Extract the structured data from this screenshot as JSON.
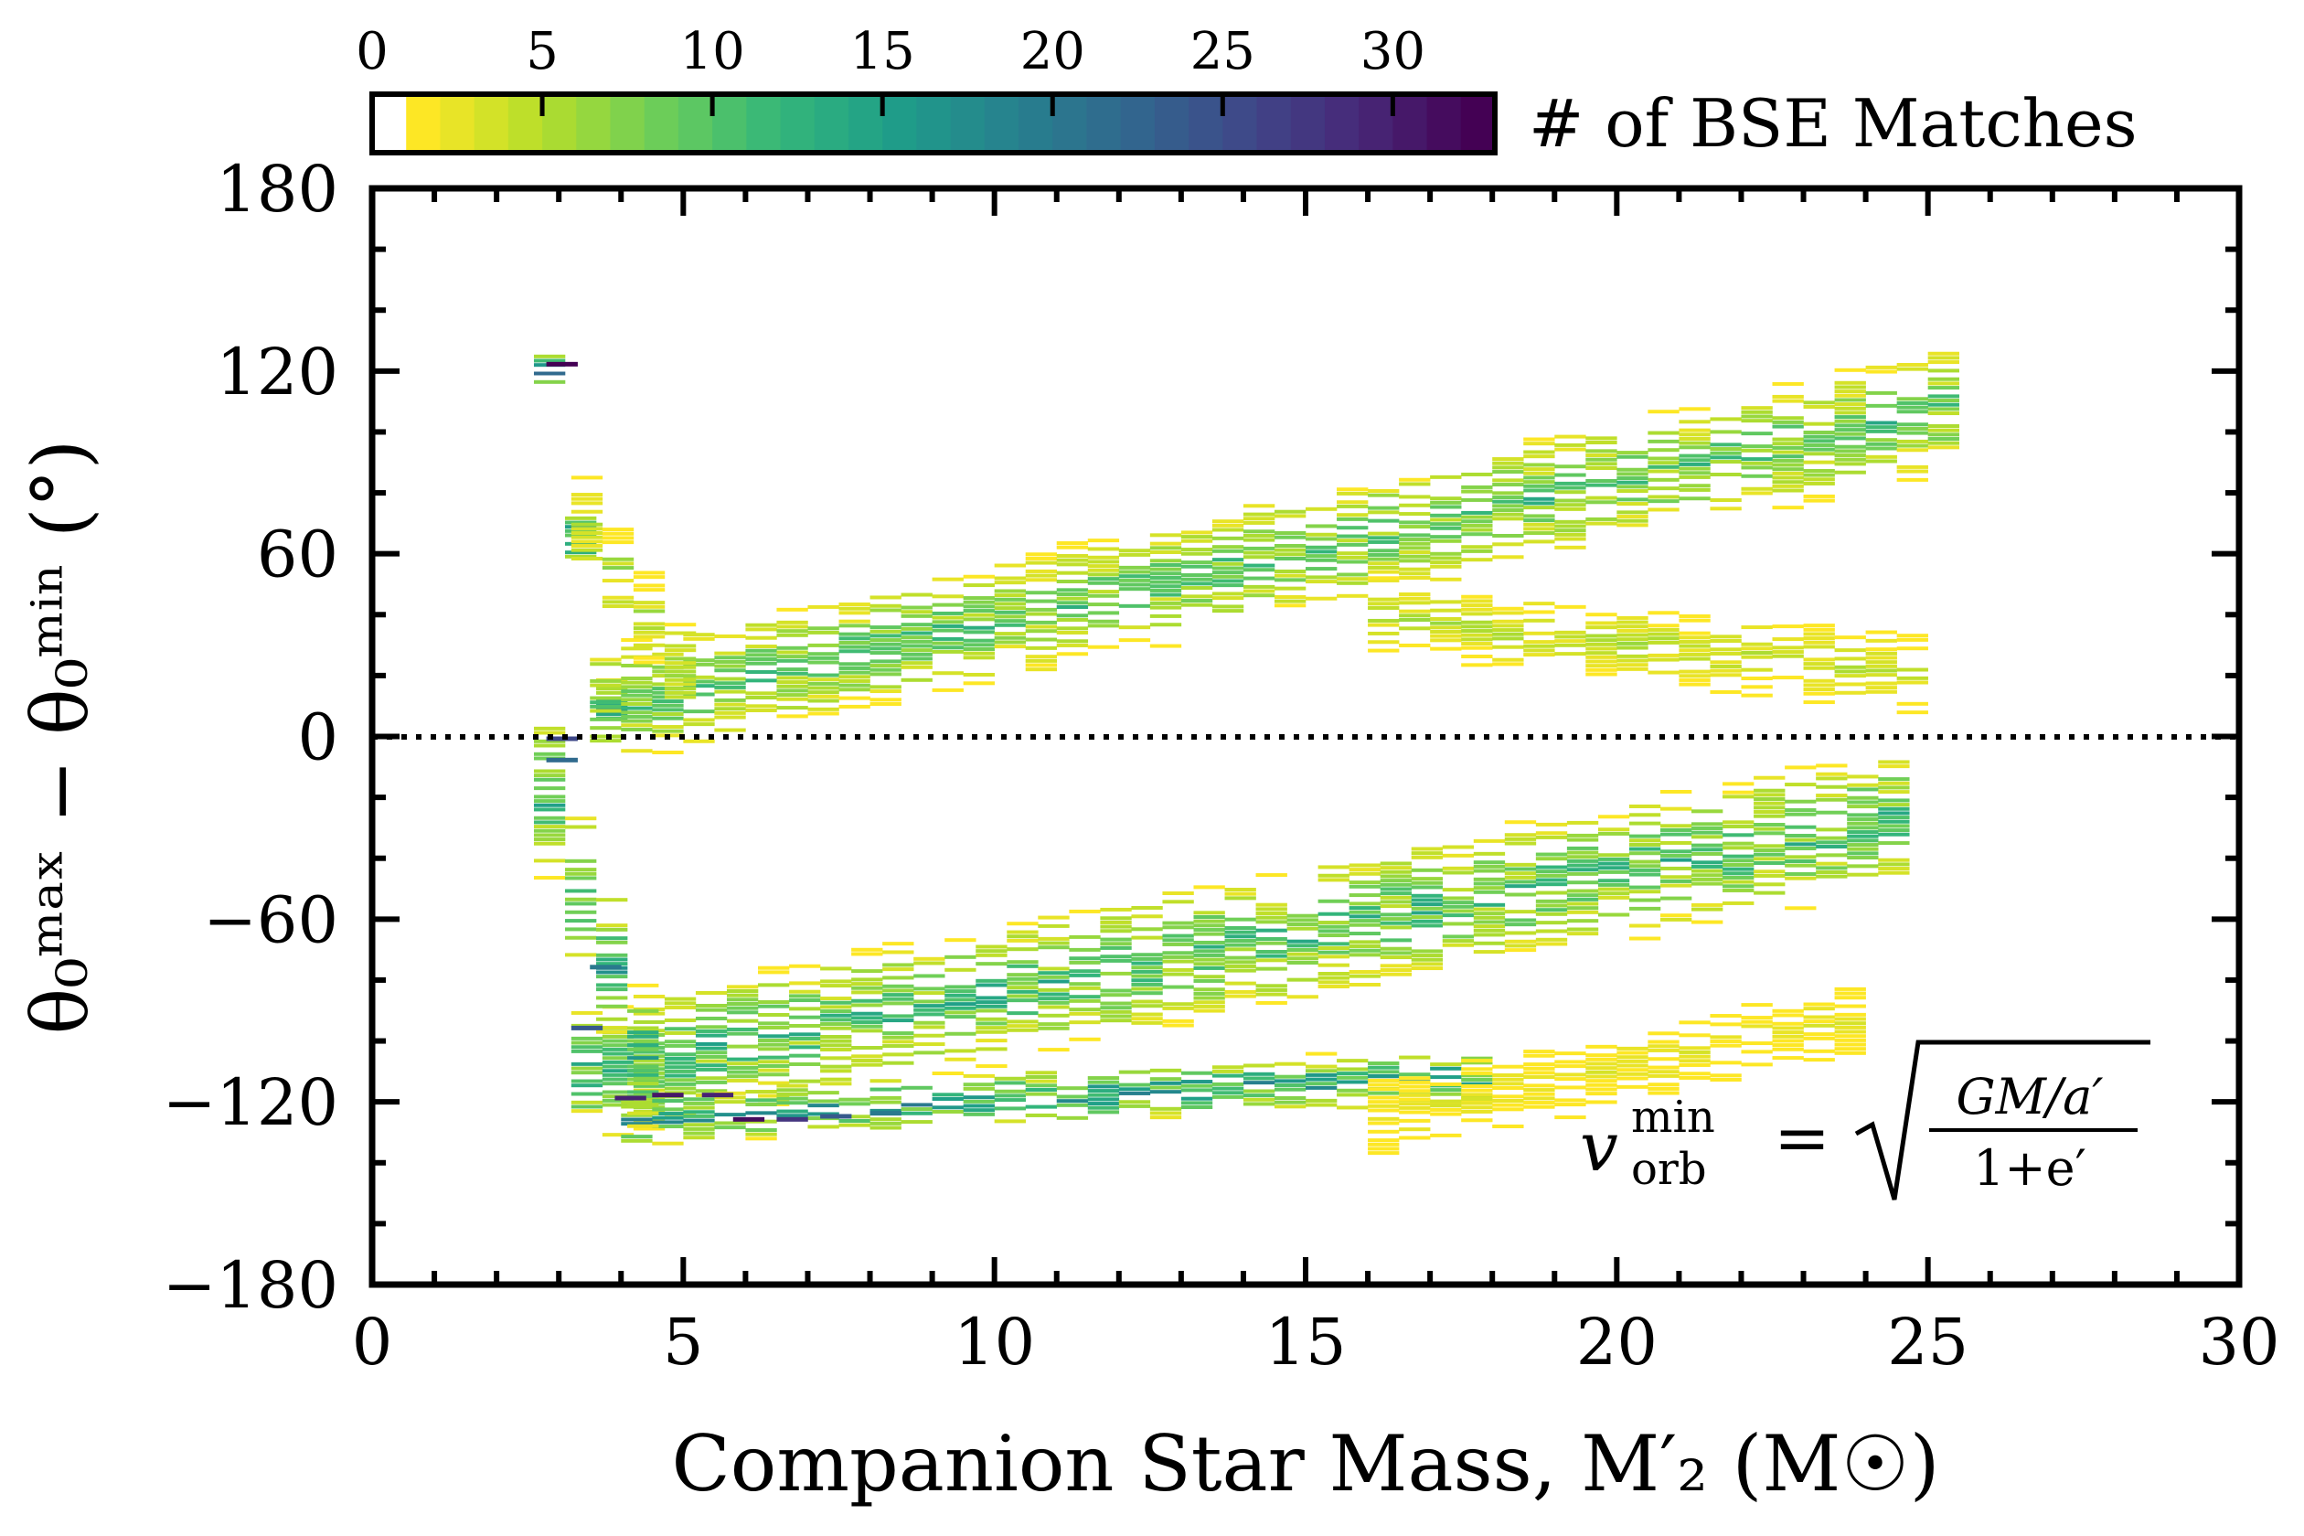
{
  "chart_data": {
    "type": "heatmap",
    "xlabel": "Companion Star Mass,  M′₂ (M☉)",
    "ylabel": "θ₀ᵐᵃˣ − θ₀ᵐⁱⁿ (°)",
    "xlim": [
      0,
      30
    ],
    "ylim": [
      -180,
      180
    ],
    "xticks": [
      0,
      5,
      10,
      15,
      20,
      25,
      30
    ],
    "xtick_labels": [
      "0",
      "5",
      "10",
      "15",
      "20",
      "25",
      "30"
    ],
    "yticks": [
      -180,
      -120,
      -60,
      0,
      60,
      120,
      180
    ],
    "ytick_labels": [
      "−180",
      "−120",
      "−60",
      "0",
      "60",
      "120",
      "180"
    ],
    "reference_line": {
      "y": 0,
      "style": "dotted"
    },
    "colorbar": {
      "label": "# of BSE Matches",
      "range": [
        0,
        33
      ],
      "ticks": [
        0,
        5,
        10,
        15,
        20,
        25,
        30
      ],
      "tick_labels": [
        "0",
        "5",
        "10",
        "15",
        "20",
        "25",
        "30"
      ],
      "colormap": "viridis_r",
      "under_color": "#ffffff"
    },
    "annotation": {
      "v": "v",
      "v_sup": "min",
      "v_sub": "orb",
      "eq": "=",
      "numer": "GM/a′",
      "denom": "1+e′"
    },
    "bands": [
      {
        "name": "upper-left spike",
        "x": [
          2.6,
          3.7
        ],
        "y_center": [
          120,
          0
        ],
        "width": 10,
        "count_peak": 25
      },
      {
        "name": "upper main branch",
        "x": [
          3.5,
          25.5
        ],
        "y_center": [
          10,
          110
        ],
        "width": 22,
        "count_peak": 14
      },
      {
        "name": "upper diverging branch",
        "x": [
          16,
          25
        ],
        "y_center": [
          40,
          20
        ],
        "width": 14,
        "count_peak": 6
      },
      {
        "name": "lower main branch",
        "x": [
          3.2,
          24.5
        ],
        "y_center": [
          -110,
          -25
        ],
        "width": 25,
        "count_peak": 16
      },
      {
        "name": "lower sub branch",
        "x": [
          4,
          18
        ],
        "y_center": [
          -125,
          -110
        ],
        "width": 10,
        "count_peak": 22
      },
      {
        "name": "lower left wall",
        "x": [
          2.6,
          4.2
        ],
        "y_center": [
          -20,
          -110
        ],
        "width": 30,
        "count_peak": 18
      },
      {
        "name": "upper wall",
        "x": [
          3.2,
          4.8
        ],
        "y_center": [
          70,
          20
        ],
        "width": 18,
        "count_peak": 8
      },
      {
        "name": "sparse bottom tail",
        "x": [
          16,
          24
        ],
        "y_center": [
          -125,
          -90
        ],
        "width": 14,
        "count_peak": 3
      }
    ],
    "pixel_counts": [
      {
        "x": 2.8,
        "y": 123,
        "count": 33
      },
      {
        "x": 2.8,
        "y": 0,
        "count": 26
      },
      {
        "x": 2.8,
        "y": -7,
        "count": 22
      },
      {
        "x": 3.9,
        "y": -118,
        "count": 30
      },
      {
        "x": 4.5,
        "y": -117,
        "count": 31
      },
      {
        "x": 5.3,
        "y": -117,
        "count": 30
      },
      {
        "x": 5.8,
        "y": -125,
        "count": 32
      },
      {
        "x": 6.5,
        "y": -125,
        "count": 28
      },
      {
        "x": 7.2,
        "y": -124,
        "count": 24
      },
      {
        "x": 8.0,
        "y": -123,
        "count": 20
      },
      {
        "x": 3.2,
        "y": -95,
        "count": 24
      },
      {
        "x": 3.5,
        "y": -75,
        "count": 20
      }
    ]
  }
}
